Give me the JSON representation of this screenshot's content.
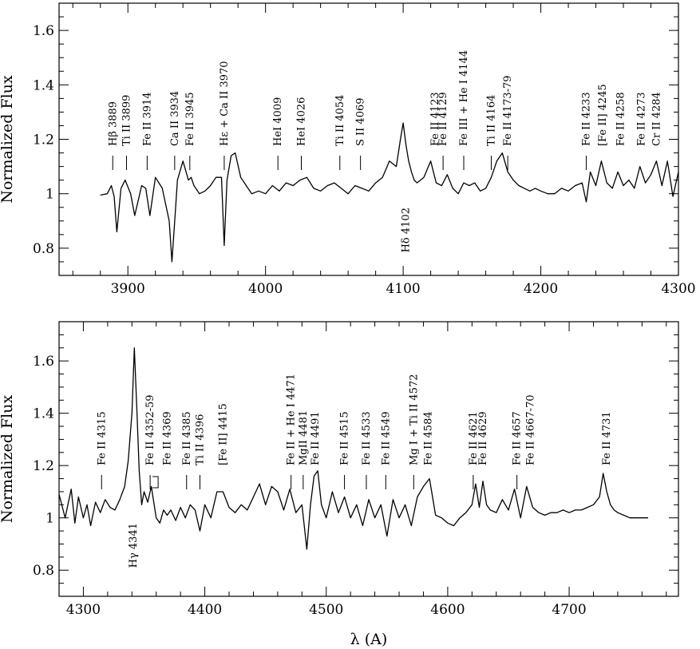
{
  "chart_data": [
    {
      "type": "line",
      "panel": "top",
      "xlim": [
        3850,
        4300
      ],
      "ylim": [
        0.7,
        1.7
      ],
      "x_ticks": [
        3900,
        4000,
        4100,
        4200,
        4300
      ],
      "x_tick_labels": [
        "3900",
        "4000",
        "4100",
        "4200",
        "4300"
      ],
      "y_ticks": [
        0.8,
        1.0,
        1.2,
        1.4,
        1.6
      ],
      "y_tick_labels": [
        "0.8",
        "1",
        "1.2",
        "1.4",
        "1.6"
      ],
      "ylabel": "Normalized Flux",
      "xlabel": "",
      "series": [
        {
          "x": [
            3880,
            3885,
            3888,
            3890,
            3892,
            3895,
            3898,
            3902,
            3905,
            3910,
            3913,
            3916,
            3920,
            3925,
            3930,
            3932,
            3934,
            3936,
            3940,
            3944,
            3946,
            3948,
            3952,
            3956,
            3960,
            3964,
            3968,
            3970,
            3972,
            3975,
            3978,
            3982,
            3986,
            3990,
            3995,
            4000,
            4005,
            4010,
            4015,
            4020,
            4025,
            4030,
            4035,
            4040,
            4045,
            4050,
            4055,
            4060,
            4065,
            4070,
            4075,
            4080,
            4085,
            4090,
            4095,
            4098,
            4100,
            4102,
            4104,
            4106,
            4108,
            4110,
            4115,
            4120,
            4124,
            4128,
            4132,
            4136,
            4140,
            4144,
            4148,
            4152,
            4156,
            4160,
            4164,
            4168,
            4172,
            4176,
            4180,
            4184,
            4188,
            4192,
            4196,
            4200,
            4205,
            4210,
            4215,
            4220,
            4225,
            4230,
            4233,
            4236,
            4240,
            4244,
            4248,
            4252,
            4256,
            4260,
            4264,
            4268,
            4272,
            4276,
            4280,
            4284,
            4288,
            4292,
            4296,
            4300
          ],
          "y": [
            0.995,
            1.0,
            1.03,
            0.99,
            0.86,
            1.02,
            1.05,
            1.0,
            0.92,
            1.03,
            1.02,
            0.92,
            1.06,
            1.02,
            0.9,
            0.75,
            0.9,
            1.05,
            1.12,
            1.05,
            1.06,
            1.03,
            1.0,
            1.01,
            1.03,
            1.06,
            1.06,
            0.81,
            1.05,
            1.14,
            1.15,
            1.06,
            1.03,
            1.0,
            1.01,
            1.0,
            1.03,
            1.01,
            1.04,
            1.03,
            1.05,
            1.06,
            1.02,
            1.01,
            1.03,
            1.04,
            1.02,
            1.0,
            1.03,
            1.02,
            1.01,
            1.04,
            1.06,
            1.12,
            1.1,
            1.2,
            1.26,
            1.18,
            1.12,
            1.08,
            1.05,
            1.04,
            1.06,
            1.12,
            1.04,
            1.03,
            1.07,
            1.02,
            1.0,
            1.04,
            1.03,
            1.04,
            1.01,
            1.02,
            1.06,
            1.12,
            1.15,
            1.08,
            1.05,
            1.03,
            1.02,
            1.01,
            1.02,
            1.01,
            1.0,
            1.0,
            1.02,
            1.01,
            1.03,
            1.04,
            0.97,
            1.08,
            1.03,
            1.12,
            1.04,
            1.02,
            1.08,
            1.03,
            1.05,
            1.02,
            1.1,
            1.04,
            1.07,
            1.12,
            1.03,
            1.12,
            0.99,
            1.08
          ]
        }
      ],
      "annotations": [
        {
          "label": "Hβ 3889",
          "x": 3889,
          "side": "above"
        },
        {
          "label": "Ti II 3899",
          "x": 3899,
          "side": "above"
        },
        {
          "label": "Fe II 3914",
          "x": 3914,
          "side": "above"
        },
        {
          "label": "Ca II 3934",
          "x": 3934,
          "side": "above"
        },
        {
          "label": "Fe II 3945",
          "x": 3945,
          "side": "above"
        },
        {
          "label": "Hε + Ca II 3970",
          "x": 3970,
          "side": "above"
        },
        {
          "label": "HeI 4009",
          "x": 4009,
          "side": "above"
        },
        {
          "label": "HeI 4026",
          "x": 4026,
          "side": "above"
        },
        {
          "label": "Ti II 4054",
          "x": 4054,
          "side": "above"
        },
        {
          "label": "S II 4069",
          "x": 4069,
          "side": "above"
        },
        {
          "label": "Fe II 4123",
          "x": 4123,
          "side": "above",
          "no_tick": true
        },
        {
          "label": "Fe II 4129",
          "x": 4129,
          "side": "above"
        },
        {
          "label": "Fe III + He I 4144",
          "x": 4144,
          "side": "above"
        },
        {
          "label": "Ti II 4164",
          "x": 4164,
          "side": "above"
        },
        {
          "label": "Fe II 4173-79",
          "x": 4176,
          "side": "above"
        },
        {
          "label": "Fe II 4233",
          "x": 4233,
          "side": "above"
        },
        {
          "label": "[Fe II] 4245",
          "x": 4245,
          "side": "above",
          "no_tick": true
        },
        {
          "label": "Fe II 4258",
          "x": 4258,
          "side": "above",
          "no_tick": true
        },
        {
          "label": "Fe II 4273",
          "x": 4273,
          "side": "above",
          "no_tick": true
        },
        {
          "label": "Cr II 4284",
          "x": 4284,
          "side": "above",
          "no_tick": true
        },
        {
          "label": "Hδ 4102",
          "x": 4102,
          "side": "below"
        }
      ]
    },
    {
      "type": "line",
      "panel": "bottom",
      "xlim": [
        4280,
        4790
      ],
      "ylim": [
        0.7,
        1.75
      ],
      "x_ticks": [
        4300,
        4400,
        4500,
        4600,
        4700
      ],
      "x_tick_labels": [
        "4300",
        "4400",
        "4500",
        "4600",
        "4700"
      ],
      "y_ticks": [
        0.8,
        1.0,
        1.2,
        1.4,
        1.6
      ],
      "y_tick_labels": [
        "0.8",
        "1",
        "1.2",
        "1.4",
        "1.6"
      ],
      "ylabel": "Normalized Flux",
      "xlabel": "λ (A)",
      "series": [
        {
          "x": [
            4280,
            4285,
            4290,
            4293,
            4296,
            4300,
            4303,
            4306,
            4310,
            4314,
            4318,
            4322,
            4326,
            4330,
            4334,
            4337,
            4340,
            4342,
            4344,
            4346,
            4348,
            4350,
            4353,
            4356,
            4360,
            4363,
            4366,
            4369,
            4372,
            4376,
            4380,
            4384,
            4388,
            4392,
            4396,
            4400,
            4405,
            4410,
            4415,
            4420,
            4425,
            4430,
            4435,
            4440,
            4445,
            4450,
            4455,
            4460,
            4465,
            4470,
            4475,
            4480,
            4484,
            4487,
            4490,
            4493,
            4496,
            4500,
            4505,
            4510,
            4515,
            4520,
            4525,
            4530,
            4535,
            4540,
            4545,
            4550,
            4555,
            4560,
            4565,
            4570,
            4575,
            4580,
            4585,
            4590,
            4595,
            4600,
            4605,
            4610,
            4615,
            4620,
            4623,
            4626,
            4629,
            4632,
            4635,
            4640,
            4645,
            4650,
            4655,
            4660,
            4665,
            4670,
            4675,
            4680,
            4685,
            4690,
            4695,
            4700,
            4705,
            4710,
            4715,
            4720,
            4725,
            4728,
            4731,
            4734,
            4737,
            4740,
            4745,
            4750,
            4755,
            4760,
            4765
          ],
          "y": [
            1.09,
            1.0,
            1.11,
            0.98,
            1.08,
            1.0,
            1.05,
            0.97,
            1.06,
            1.02,
            1.07,
            1.04,
            1.03,
            1.07,
            1.12,
            1.22,
            1.4,
            1.65,
            1.42,
            1.18,
            1.05,
            1.1,
            1.06,
            1.12,
            1.0,
            0.98,
            1.03,
            1.01,
            1.03,
            0.99,
            1.04,
            1.0,
            1.05,
            1.03,
            0.95,
            1.05,
            1.0,
            1.1,
            1.1,
            1.04,
            1.02,
            1.05,
            1.03,
            1.08,
            1.13,
            1.05,
            1.12,
            1.1,
            1.03,
            1.11,
            1.02,
            1.05,
            0.88,
            1.05,
            1.16,
            1.18,
            1.05,
            1.0,
            1.1,
            1.02,
            1.08,
            1.0,
            1.05,
            0.97,
            1.07,
            1.0,
            1.05,
            0.93,
            1.07,
            1.0,
            1.05,
            0.97,
            1.08,
            1.12,
            1.15,
            1.01,
            1.0,
            0.98,
            0.97,
            1.0,
            1.02,
            1.05,
            1.13,
            1.04,
            1.14,
            1.05,
            1.03,
            1.02,
            1.07,
            1.03,
            1.11,
            1.0,
            1.12,
            1.04,
            1.02,
            1.01,
            1.02,
            1.02,
            1.03,
            1.02,
            1.03,
            1.03,
            1.04,
            1.05,
            1.08,
            1.17,
            1.1,
            1.05,
            1.03,
            1.02,
            1.01,
            1.0,
            1.0,
            1.0,
            1.0
          ],
          "name": ""
        }
      ],
      "annotations": [
        {
          "label": "Fe II 4315",
          "x": 4315,
          "side": "above"
        },
        {
          "label": "Fe II 4352-59",
          "x": 4355,
          "side": "above",
          "bracket": true
        },
        {
          "label": "Fe II 4369",
          "x": 4369,
          "side": "above",
          "no_tick": true
        },
        {
          "label": "Fe II 4385",
          "x": 4385,
          "side": "above"
        },
        {
          "label": "Ti II 4396",
          "x": 4396,
          "side": "above"
        },
        {
          "label": "[Fe II] 4415",
          "x": 4415,
          "side": "above",
          "no_tick": true
        },
        {
          "label": "Fe II + He I 4471",
          "x": 4471,
          "side": "above"
        },
        {
          "label": "MgII 4481",
          "x": 4481,
          "side": "above"
        },
        {
          "label": "Fe II 4491",
          "x": 4491,
          "side": "above",
          "no_tick": true
        },
        {
          "label": "Fe II 4515",
          "x": 4515,
          "side": "above"
        },
        {
          "label": "Fe II 4533",
          "x": 4533,
          "side": "above"
        },
        {
          "label": "Fe II 4549",
          "x": 4549,
          "side": "above"
        },
        {
          "label": "Mg I + Ti II 4572",
          "x": 4572,
          "side": "above"
        },
        {
          "label": "Fe II 4584",
          "x": 4584,
          "side": "above",
          "no_tick": true
        },
        {
          "label": "Fe II 4621",
          "x": 4621,
          "side": "above"
        },
        {
          "label": "Fe II 4629",
          "x": 4629,
          "side": "above",
          "no_tick": true
        },
        {
          "label": "Fe II 4657",
          "x": 4657,
          "side": "above"
        },
        {
          "label": "Fe II 4667-70",
          "x": 4668,
          "side": "above",
          "no_tick": true
        },
        {
          "label": "Fe II 4731",
          "x": 4731,
          "side": "above",
          "no_tick": true
        },
        {
          "label": "Hγ 4341",
          "x": 4341,
          "side": "below"
        }
      ]
    }
  ]
}
